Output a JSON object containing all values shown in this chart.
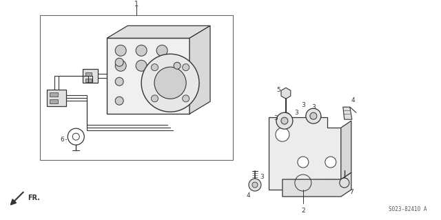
{
  "bg_color": "#ffffff",
  "line_color": "#333333",
  "fig_width": 6.4,
  "fig_height": 3.19,
  "dpi": 100,
  "catalog_number": "S023-82410 A"
}
